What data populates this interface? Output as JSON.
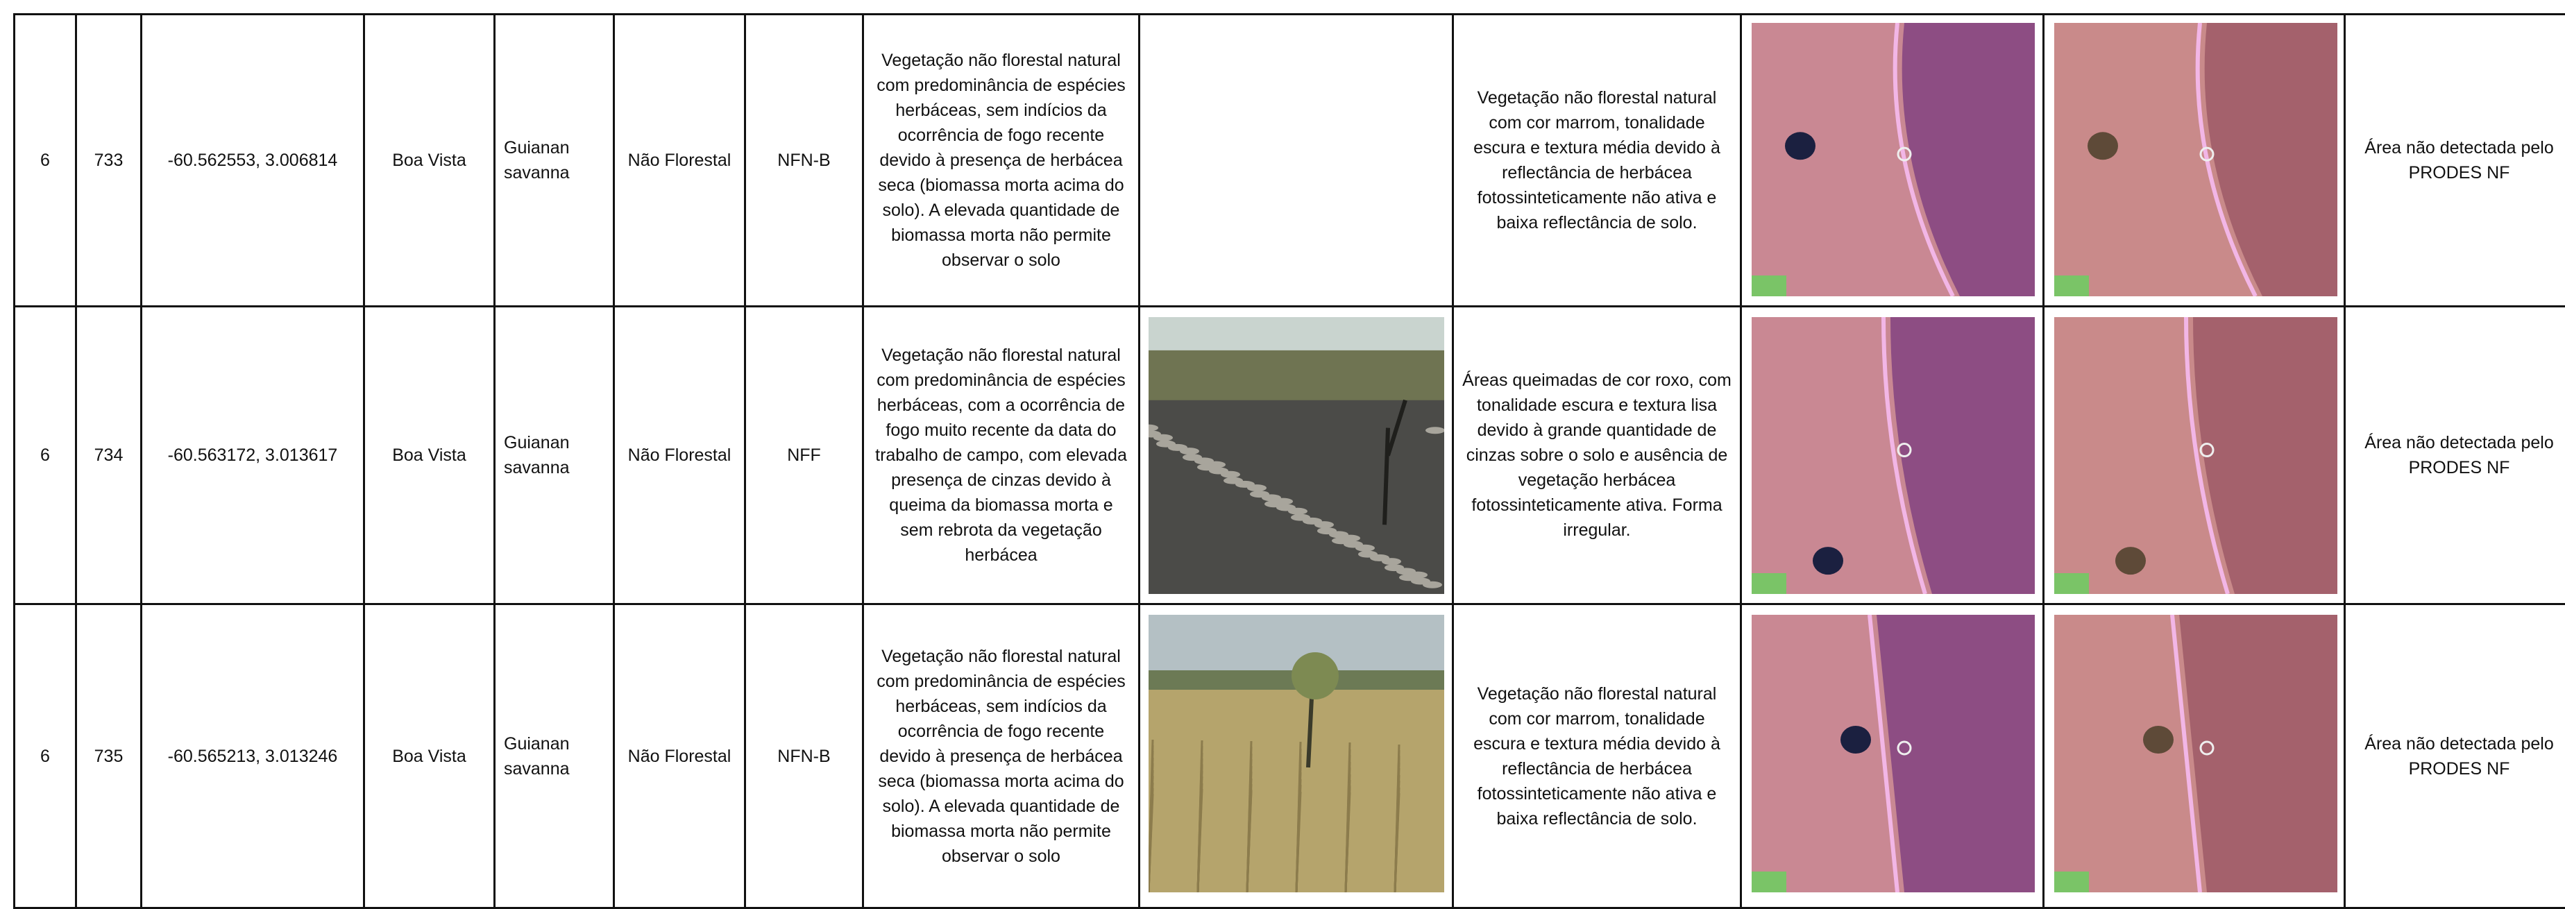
{
  "table": {
    "rows": [
      [
        "6",
        "733",
        "-60.562553, 3.006814",
        "Boa Vista",
        "Guianan savanna",
        "Não Florestal",
        "NFN-B",
        "Vegetação não florestal natural com predominância de espécies herbáceas, sem indícios da ocorrência de fogo recente devido à presença de herbácea seca (biomassa morta acima do solo). A elevada quantidade de biomassa morta não permite observar o solo",
        "Vegetação não florestal natural com cor marrom, tonalidade escura e textura média devido à reflectância de herbácea fotossinteticamente não ativa e baixa reflectância de solo.",
        "Área não detectada pelo PRODES NF"
      ],
      [
        "6",
        "734",
        "-60.563172, 3.013617",
        "Boa Vista",
        "Guianan savanna",
        "Não Florestal",
        "NFF",
        "Vegetação não florestal natural com predominância de espécies herbáceas, com a ocorrência de fogo muito recente da data do trabalho de campo, com elevada presença de cinzas devido à queima da biomassa morta e sem rebrota da vegetação herbácea",
        "Áreas queimadas de cor roxo, com tonalidade escura e textura lisa devido à grande quantidade de cinzas sobre o solo e ausência de vegetação herbácea fotossinteticamente ativa. Forma irregular.",
        "Área não detectada pelo PRODES NF"
      ],
      [
        "6",
        "735",
        "-60.565213, 3.013246",
        "Boa Vista",
        "Guianan savanna",
        "Não Florestal",
        "NFN-B",
        "Vegetação não florestal natural com predominância de espécies herbáceas, sem indícios da ocorrência de fogo recente devido à presença de herbácea seca (biomassa morta acima do solo). A elevada quantidade de biomassa morta não permite observar o solo",
        "Vegetação não florestal natural com cor marrom, tonalidade escura e textura média devido à reflectância de herbácea fotossinteticamente não ativa e baixa reflectância de solo.",
        "Área não detectada pelo PRODES NF"
      ]
    ]
  }
}
